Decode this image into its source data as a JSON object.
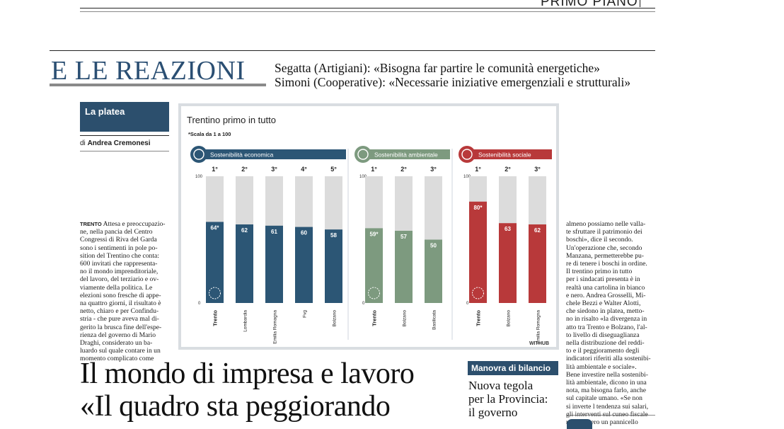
{
  "header": {
    "section": "PRIMO PIANO",
    "title": "E LE REAZIONI",
    "deck_lines": [
      "Segatta (Artigiani): «Bisogna far partire le comunità energetiche»",
      "Simoni (Cooperative): «Necessarie iniziative emergenziali e strutturali»"
    ]
  },
  "column": {
    "box_label": "La platea",
    "byline_prefix": "di",
    "byline_name": "Andrea Cremonesi"
  },
  "left_article": {
    "dateline": "TRENTO",
    "lines": [
      "Attesa e preoccupazio-",
      "ne, nella pancia del Centro",
      "Congressi di Riva del Garda",
      "sono i sentimenti in pole po-",
      "sition del Trentino che conta:",
      "600 invitati che rappresenta-",
      "no il mondo imprenditoriale,",
      "del lavoro, del terziario e ov-",
      "viamente della politica. Le",
      "elezioni sono fresche di appe-",
      "na quattro giorni, il risultato è",
      "netto, chiaro e per Confindu-",
      "stria - che pure aveva mal di-",
      "gerito la brusca fine dell'espe-",
      "rienza del governo di Mario",
      "Draghi, considerato un ba-",
      "luardo sul quale contare in un",
      "momento complicato come"
    ]
  },
  "right_article": {
    "lines": [
      "almeno possiamo nelle valla-",
      "te sfruttare il patrimonio dei",
      "boschi», dice il secondo.",
      "Un'operazione che, secondo",
      "Manzana, permetterebbe pu-",
      "re di tenere i boschi in ordine.",
      "Il trentino primo in tutto",
      "per i sindacati presenta è in",
      "realtà una cartolina in bianco",
      "e nero. Andrea Grosselli, Mi-",
      "chele Bezzi e Walter Alotti,",
      "che siedono in platea, metto-",
      "no in risalto «la divergenza in",
      "atto tra Trento e Bolzano, l'al-",
      "to livello di diseguaglianza",
      "nella distribuzione del reddi-",
      "to e il peggioramento degli",
      "indicatori riferiti alla sostenibi-",
      "lità ambientale e sociale».",
      "Bene investire nella sostenibi-",
      "lità ambientale, dicono in una",
      "nota, ma bisogna farlo, anche",
      "sul capitale umano. «Se non",
      "si inverte l tendenza sui salari,",
      "gli interventi sul cuneo fiscale",
      "resterebbero un pannicello"
    ]
  },
  "headline": {
    "line1": "Il mondo di impresa e lavoro",
    "line2": "«Il quadro sta peggiorando"
  },
  "side_story": {
    "tag": "Manovra di bilancio",
    "lines": [
      "Nuova tegola",
      "per la Provincia:",
      "il governo"
    ]
  },
  "chart_data": {
    "type": "bar",
    "title": "Trentino primo in tutto",
    "subtitle": "*Scala da 1 a 100",
    "source": "WITHUB",
    "ylim": [
      0,
      100
    ],
    "ytick_labels": [
      "100",
      "0"
    ],
    "groups": [
      {
        "name": "Sostenibilità economica",
        "color": "#2c5675",
        "categories": [
          "Trento",
          "Lombardia",
          "Emilia Romagna",
          "Fvg",
          "Bolzano"
        ],
        "ranks": [
          "1°",
          "2°",
          "3°",
          "4°",
          "5°"
        ],
        "values": [
          64,
          62,
          61,
          60,
          58
        ],
        "labels": [
          "64*",
          "62",
          "61",
          "60",
          "58"
        ]
      },
      {
        "name": "Sostenibilità ambientale",
        "color": "#7d9a7f",
        "categories": [
          "Trento",
          "Bolzano",
          "Basilicata"
        ],
        "ranks": [
          "1°",
          "2°",
          "3°"
        ],
        "values": [
          59,
          57,
          50
        ],
        "labels": [
          "59*",
          "57",
          "50"
        ]
      },
      {
        "name": "Sostenibilità sociale",
        "color": "#b8393a",
        "categories": [
          "Trento",
          "Bolzano",
          "Emilia Romagna"
        ],
        "ranks": [
          "1°",
          "2°",
          "3°"
        ],
        "values": [
          80,
          63,
          62
        ],
        "labels": [
          "80*",
          "63",
          "62"
        ]
      }
    ]
  }
}
